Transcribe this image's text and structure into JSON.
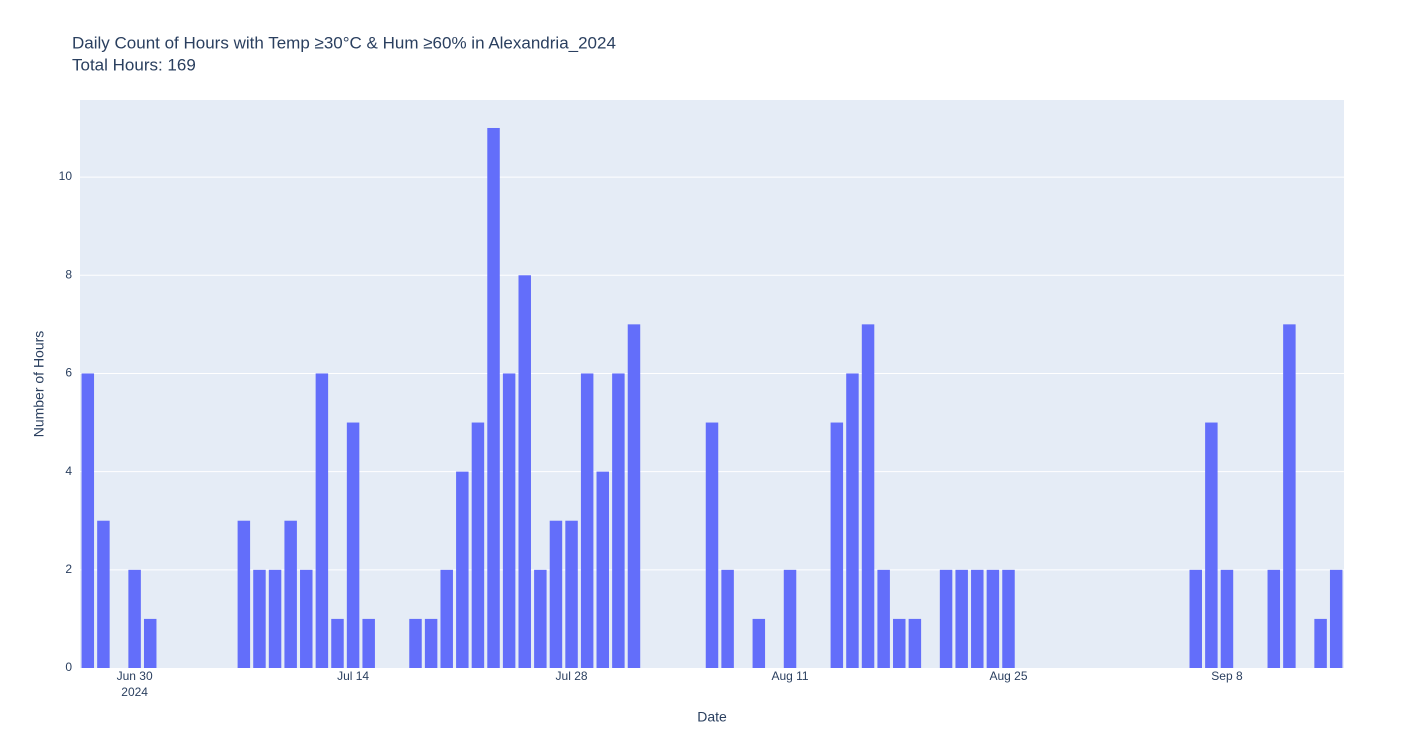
{
  "chart_data": {
    "type": "bar",
    "title": "Daily Count of Hours with Temp ≥30°C & Hum ≥60% in Alexandria_2024",
    "subtitle": "Total Hours: 169",
    "x_label": "Date",
    "y_label": "Number of Hours",
    "x": [
      "2024-06-27",
      "2024-06-28",
      "2024-06-30",
      "2024-07-01",
      "2024-07-07",
      "2024-07-08",
      "2024-07-09",
      "2024-07-10",
      "2024-07-11",
      "2024-07-12",
      "2024-07-13",
      "2024-07-14",
      "2024-07-15",
      "2024-07-18",
      "2024-07-19",
      "2024-07-20",
      "2024-07-21",
      "2024-07-22",
      "2024-07-23",
      "2024-07-24",
      "2024-07-25",
      "2024-07-26",
      "2024-07-27",
      "2024-07-28",
      "2024-07-29",
      "2024-07-30",
      "2024-07-31",
      "2024-08-01",
      "2024-08-06",
      "2024-08-07",
      "2024-08-09",
      "2024-08-11",
      "2024-08-14",
      "2024-08-15",
      "2024-08-16",
      "2024-08-17",
      "2024-08-18",
      "2024-08-19",
      "2024-08-21",
      "2024-08-22",
      "2024-08-23",
      "2024-08-24",
      "2024-08-25",
      "2024-09-06",
      "2024-09-07",
      "2024-09-08",
      "2024-09-11",
      "2024-09-12",
      "2024-09-14",
      "2024-09-15"
    ],
    "values": [
      6,
      3,
      2,
      1,
      3,
      2,
      2,
      3,
      2,
      6,
      1,
      5,
      1,
      1,
      1,
      2,
      4,
      5,
      11,
      6,
      8,
      2,
      3,
      3,
      6,
      4,
      6,
      7,
      5,
      2,
      1,
      2,
      5,
      6,
      7,
      2,
      1,
      1,
      2,
      2,
      2,
      2,
      2,
      2,
      5,
      2,
      2,
      7,
      1,
      2
    ],
    "color": "#636efa",
    "xlim": [
      "2024-06-26T12:00",
      "2024-09-15T12:00"
    ],
    "xticks": [
      {
        "value": "2024-06-30",
        "label": "Jun 30"
      },
      {
        "value": "2024-07-14",
        "label": "Jul 14"
      },
      {
        "value": "2024-07-28",
        "label": "Jul 28"
      },
      {
        "value": "2024-08-11",
        "label": "Aug 11"
      },
      {
        "value": "2024-08-25",
        "label": "Aug 25"
      },
      {
        "value": "2024-09-08",
        "label": "Sep 8"
      }
    ],
    "x_tick_year": "2024",
    "ylim": [
      0,
      11.57
    ],
    "yticks": [
      0,
      2,
      4,
      6,
      8,
      10
    ],
    "grid": true
  }
}
